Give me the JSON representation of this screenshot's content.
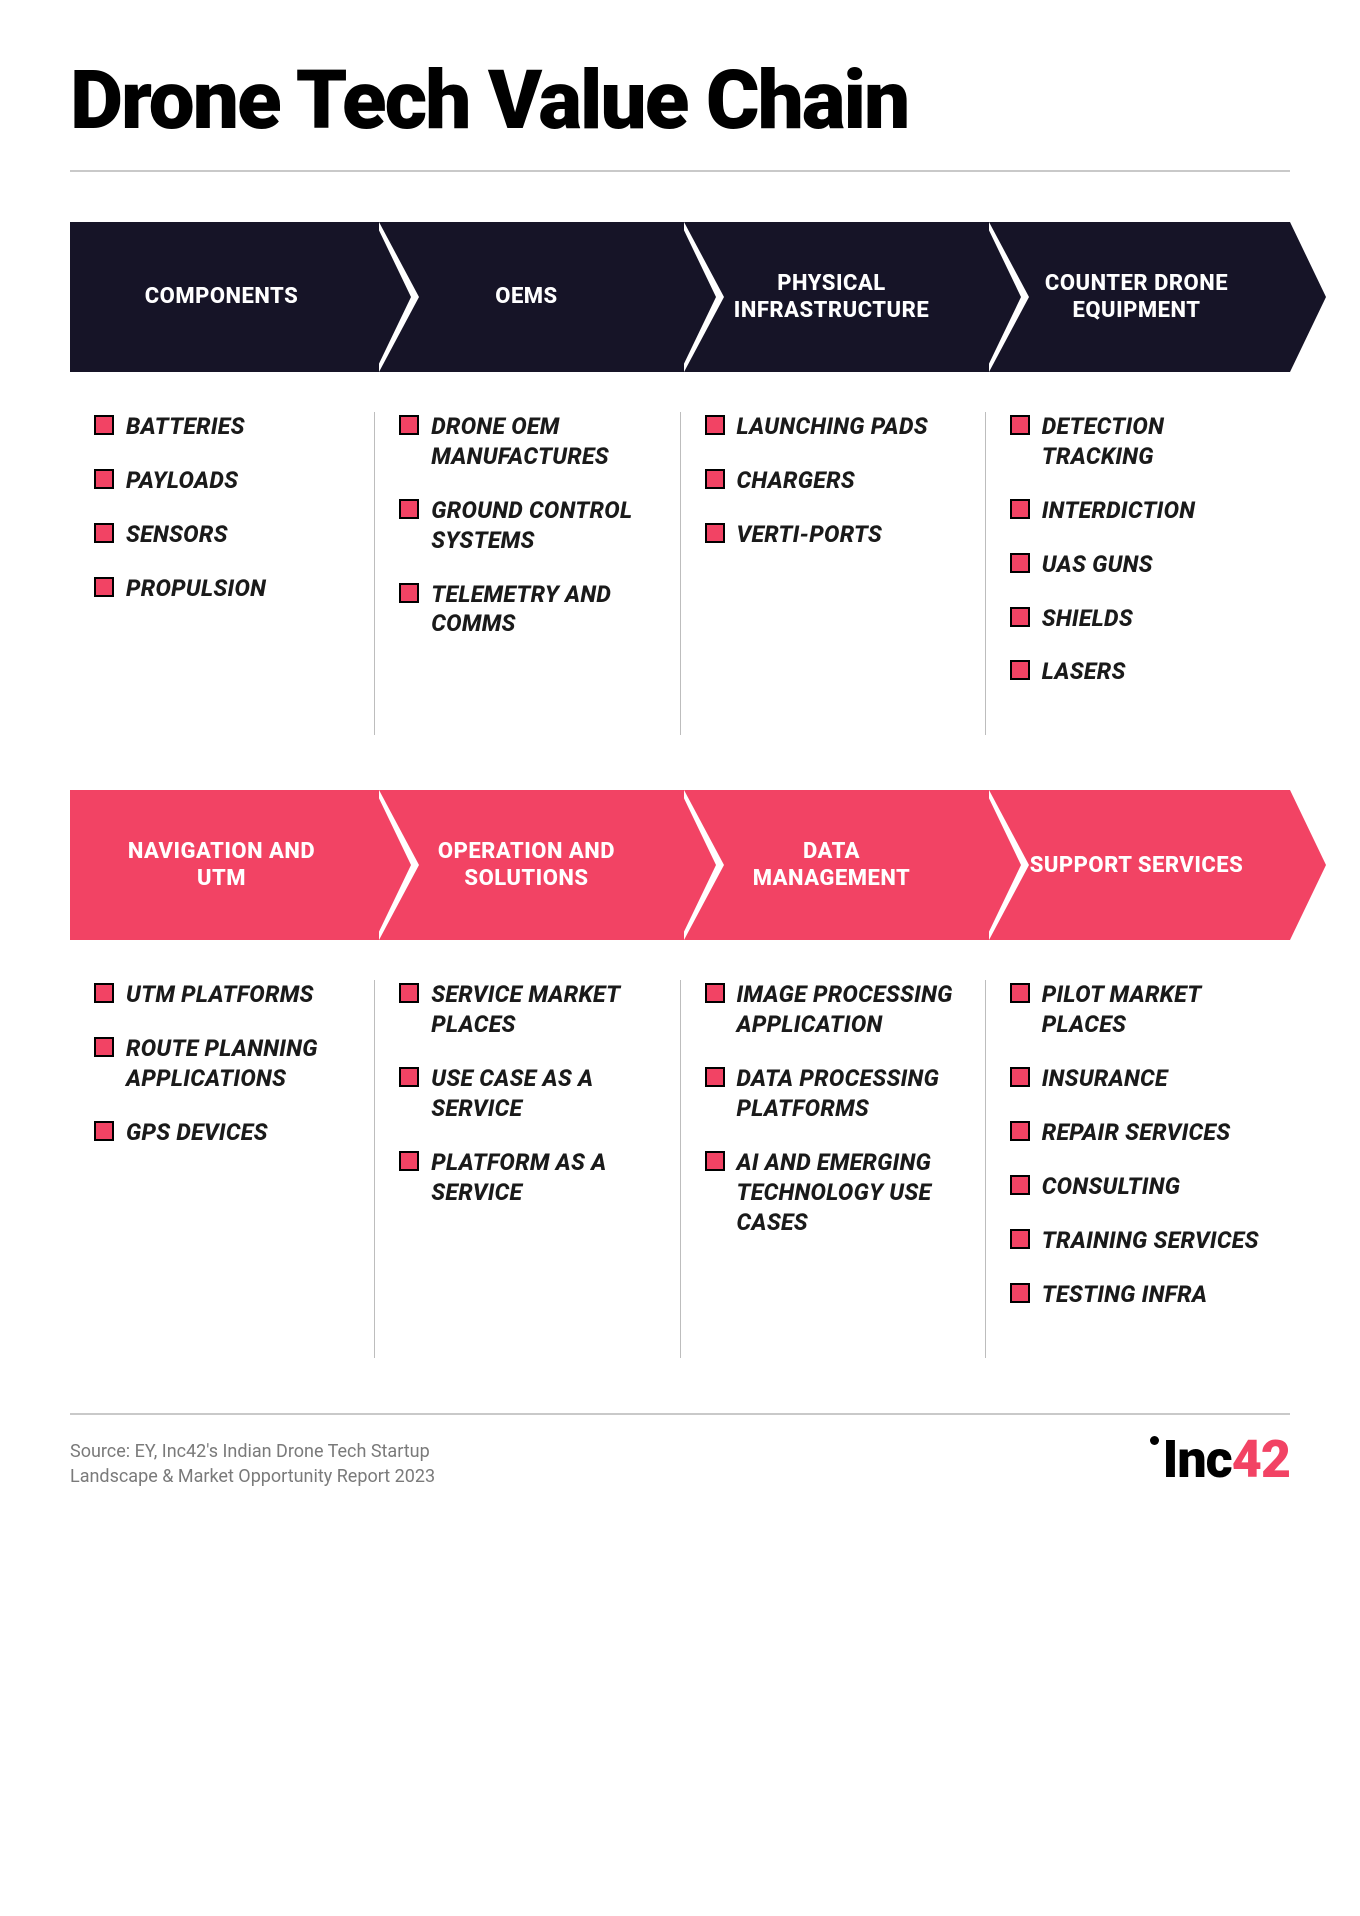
{
  "title": "Drone Tech Value Chain",
  "colors": {
    "dark": "#161427",
    "pink": "#f24364",
    "white": "#ffffff",
    "rule": "#c9c9c9",
    "text": "#1a1a1a",
    "muted": "#7a7a7a",
    "bullet_border": "#000000"
  },
  "typography": {
    "title_size": 82,
    "chevron_label_size": 22,
    "item_size": 23,
    "source_size": 18,
    "brand_size": 52
  },
  "row1": {
    "header_color": "dark",
    "categories": [
      {
        "label": "COMPONENTS",
        "items": [
          "BATTERIES",
          "PAYLOADS",
          "SENSORS",
          "PROPULSION"
        ]
      },
      {
        "label": "OEMS",
        "items": [
          "DRONE OEM MANUFACTURES",
          "GROUND CONTROL SYSTEMS",
          "TELEMETRY AND COMMS"
        ]
      },
      {
        "label": "PHYSICAL INFRASTRUCTURE",
        "items": [
          "LAUNCHING PADS",
          "CHARGERS",
          "VERTI-PORTS"
        ]
      },
      {
        "label": "COUNTER DRONE EQUIPMENT",
        "items": [
          "DETECTION TRACKING",
          "INTERDICTION",
          "UAS GUNS",
          "SHIELDS",
          "LASERS"
        ]
      }
    ]
  },
  "row2": {
    "header_color": "pink",
    "categories": [
      {
        "label": "NAVIGATION AND UTM",
        "items": [
          "UTM PLATFORMS",
          "ROUTE PLANNING APPLICATIONS",
          "GPS DEVICES"
        ]
      },
      {
        "label": "OPERATION AND SOLUTIONS",
        "items": [
          "SERVICE MARKET PLACES",
          "USE CASE AS A SERVICE",
          "PLATFORM AS A SERVICE"
        ]
      },
      {
        "label": "DATA MANAGEMENT",
        "items": [
          "IMAGE PROCESSING APPLICATION",
          "DATA PROCESSING PLATFORMS",
          "AI AND EMERGING TECHNOLOGY USE CASES"
        ]
      },
      {
        "label": "SUPPORT SERVICES",
        "items": [
          "PILOT MARKET PLACES",
          "INSURANCE",
          "REPAIR SERVICES",
          "CONSULTING",
          "TRAINING SERVICES",
          "TESTING INFRA"
        ]
      }
    ]
  },
  "source_line1": "Source: EY, Inc42's Indian Drone Tech Startup",
  "source_line2": "Landscape & Market Opportunity Report 2023",
  "brand_prefix": "Inc",
  "brand_accent": "42"
}
